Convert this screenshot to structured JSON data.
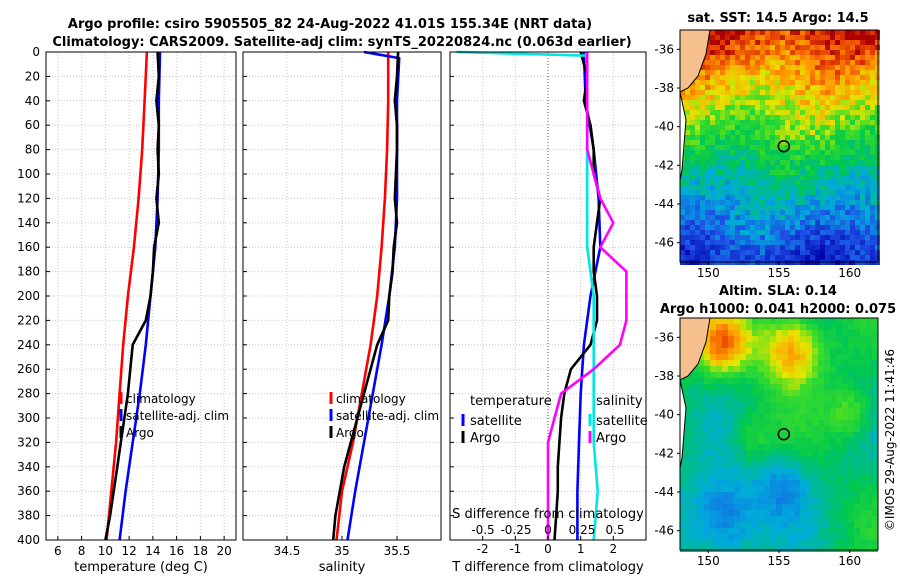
{
  "title_line1": "Argo profile: csiro 5905505_82 24-Aug-2022 41.01S 155.34E (NRT data)",
  "title_line2": "Climatology: CARS2009. Satellite-adj clim: synTS_20220824.nc (0.063d earlier)",
  "copyright": "©IMOS 29-Aug-2022 11:41:46",
  "colors": {
    "climatology": "#ff0000",
    "satellite": "#0000ff",
    "argo": "#000000",
    "sal_sat": "#00e5e5",
    "sal_argo": "#ff00ff",
    "land": "#f5c08e"
  },
  "chart_data": [
    {
      "type": "line",
      "name": "temperature-panel",
      "xlabel": "temperature (deg C)",
      "ylabel": "",
      "xlim": [
        5,
        21
      ],
      "ylim": [
        400,
        0
      ],
      "xticks": [
        6,
        8,
        10,
        12,
        14,
        16,
        18,
        20
      ],
      "yticks": [
        0,
        20,
        40,
        60,
        80,
        100,
        120,
        140,
        160,
        180,
        200,
        220,
        240,
        260,
        280,
        300,
        320,
        340,
        360,
        380,
        400
      ],
      "legend": [
        "climatology",
        "satellite-adj. clim",
        "Argo"
      ],
      "series": [
        {
          "name": "climatology",
          "depth": [
            0,
            40,
            80,
            120,
            160,
            200,
            240,
            280,
            320,
            360,
            400
          ],
          "values": [
            13.5,
            13.3,
            13.1,
            12.8,
            12.4,
            11.9,
            11.5,
            11.2,
            10.9,
            10.5,
            10.1
          ]
        },
        {
          "name": "satellite-adj. clim",
          "depth": [
            0,
            40,
            80,
            120,
            160,
            200,
            240,
            280,
            320,
            360,
            400
          ],
          "values": [
            14.6,
            14.5,
            14.5,
            14.4,
            14.2,
            13.8,
            13.4,
            12.9,
            12.3,
            11.7,
            11.2
          ]
        },
        {
          "name": "Argo",
          "depth": [
            0,
            20,
            40,
            60,
            80,
            100,
            120,
            140,
            160,
            180,
            200,
            220,
            240,
            260,
            280,
            300,
            320,
            340,
            360,
            380,
            400
          ],
          "values": [
            14.4,
            14.5,
            14.3,
            14.5,
            14.4,
            14.5,
            14.3,
            14.5,
            14.1,
            14.0,
            13.8,
            13.4,
            12.3,
            12.1,
            11.9,
            11.6,
            11.3,
            11.0,
            10.7,
            10.4,
            10.0
          ]
        }
      ]
    },
    {
      "type": "line",
      "name": "salinity-panel",
      "xlabel": "salinity",
      "ylabel": "",
      "xlim": [
        34.1,
        35.9
      ],
      "ylim": [
        400,
        0
      ],
      "xticks": [
        34.5,
        35,
        35.5
      ],
      "legend": [
        "climatology",
        "satellite-adj. clim",
        "Argo"
      ],
      "series": [
        {
          "name": "climatology",
          "depth": [
            0,
            40,
            80,
            120,
            160,
            200,
            240,
            280,
            320,
            360,
            400
          ],
          "values": [
            35.42,
            35.42,
            35.41,
            35.39,
            35.36,
            35.32,
            35.26,
            35.18,
            35.1,
            35.0,
            34.95
          ]
        },
        {
          "name": "satellite-adj. clim",
          "depth": [
            0,
            5,
            40,
            80,
            120,
            160,
            200,
            240,
            280,
            320,
            360,
            400
          ],
          "values": [
            35.2,
            35.52,
            35.5,
            35.5,
            35.5,
            35.48,
            35.43,
            35.36,
            35.28,
            35.2,
            35.12,
            35.05
          ]
        },
        {
          "name": "Argo",
          "depth": [
            0,
            20,
            40,
            60,
            80,
            100,
            120,
            140,
            160,
            180,
            200,
            220,
            240,
            260,
            280,
            300,
            320,
            340,
            360,
            380,
            400
          ],
          "values": [
            35.51,
            35.5,
            35.48,
            35.5,
            35.5,
            35.49,
            35.48,
            35.5,
            35.47,
            35.46,
            35.43,
            35.42,
            35.32,
            35.26,
            35.2,
            35.14,
            35.08,
            35.02,
            34.98,
            34.94,
            34.92
          ]
        }
      ]
    },
    {
      "type": "line",
      "name": "difference-panel",
      "xlabel": "T difference from climatology",
      "xlabel2": "S difference from climatology",
      "xlim": [
        -3,
        3
      ],
      "ylim": [
        400,
        0
      ],
      "xticks": [
        -2,
        -1,
        0,
        1,
        2
      ],
      "s_tick_labels": [
        "-0.5",
        "-0.25",
        "0",
        "0.25",
        "0.5"
      ],
      "legend_temperature": {
        "title": "temperature",
        "items": [
          "satellite",
          "Argo"
        ]
      },
      "legend_salinity": {
        "title": "salinity",
        "items": [
          "satellite",
          "Argo"
        ]
      },
      "series": [
        {
          "name": "T satellite",
          "depth": [
            0,
            40,
            80,
            120,
            160,
            200,
            240,
            280,
            320,
            360,
            400
          ],
          "values": [
            1.1,
            1.15,
            1.4,
            1.55,
            1.6,
            1.3,
            1.1,
            1.0,
            0.95,
            0.9,
            0.9
          ]
        },
        {
          "name": "T Argo",
          "depth": [
            0,
            20,
            40,
            60,
            80,
            100,
            120,
            140,
            160,
            180,
            200,
            220,
            240,
            260,
            280,
            300,
            320,
            340,
            360,
            380,
            400
          ],
          "values": [
            1.0,
            1.2,
            1.1,
            1.3,
            1.4,
            1.4,
            1.6,
            1.5,
            1.4,
            1.4,
            1.5,
            1.5,
            1.3,
            0.7,
            0.5,
            0.4,
            0.35,
            0.3,
            0.3,
            0.25,
            0.2
          ]
        },
        {
          "name": "S satellite",
          "depth": [
            0,
            3,
            40,
            80,
            120,
            160,
            200,
            240,
            280,
            320,
            360,
            400
          ],
          "values": [
            -0.7,
            0.3,
            0.3,
            0.3,
            0.3,
            0.3,
            0.35,
            0.35,
            0.35,
            0.35,
            0.38,
            0.35
          ]
        },
        {
          "name": "S Argo",
          "depth": [
            0,
            20,
            40,
            60,
            80,
            100,
            120,
            140,
            160,
            180,
            200,
            220,
            240,
            260,
            280,
            300,
            320,
            340,
            360,
            380,
            400
          ],
          "values": [
            0.3,
            0.3,
            0.3,
            0.3,
            0.3,
            0.35,
            0.4,
            0.5,
            0.4,
            0.6,
            0.6,
            0.6,
            0.55,
            0.35,
            0.1,
            0.05,
            0.0,
            0.0,
            0.0,
            0.0,
            0.0
          ]
        }
      ]
    },
    {
      "type": "heatmap",
      "name": "sst-map",
      "title": "sat. SST: 14.5 Argo: 14.5",
      "xticks": [
        150,
        155,
        160
      ],
      "yticks": [
        -36,
        -38,
        -40,
        -42,
        -44,
        -46
      ],
      "xlim": [
        148,
        162
      ],
      "ylim": [
        -47,
        -35
      ],
      "marker": {
        "lon": 155.34,
        "lat": -41.01
      }
    },
    {
      "type": "heatmap",
      "name": "sla-map",
      "title": "Altim. SLA: 0.14",
      "subtitle": "Argo h1000: 0.041 h2000: 0.075",
      "xticks": [
        150,
        155,
        160
      ],
      "yticks": [
        -36,
        -38,
        -40,
        -42,
        -44,
        -46
      ],
      "xlim": [
        148,
        162
      ],
      "ylim": [
        -47,
        -35
      ],
      "marker": {
        "lon": 155.34,
        "lat": -41.01
      }
    }
  ]
}
